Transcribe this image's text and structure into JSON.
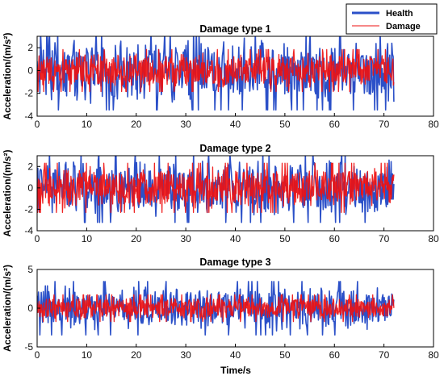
{
  "chart_data": {
    "type": "line",
    "xlabel": "Time/s",
    "xlim": [
      0,
      80
    ],
    "xticks": [
      0,
      10,
      20,
      30,
      40,
      50,
      60,
      70,
      80
    ],
    "signal_duration_s": 72,
    "legend": {
      "position": "top-right",
      "entries": [
        {
          "name": "Health",
          "color": "#2b50c8"
        },
        {
          "name": "Damage",
          "color": "#ee1111"
        }
      ]
    },
    "panels": [
      {
        "title": "Damage type 1",
        "ylabel": "Acceleration/(m/s²)",
        "ylim": [
          -4,
          3
        ],
        "yticks": [
          -4,
          -2,
          0,
          2
        ],
        "series": [
          {
            "name": "Health",
            "color": "#2b50c8",
            "approx_amplitude": 3.0
          },
          {
            "name": "Damage",
            "color": "#ee1111",
            "approx_amplitude": 1.6
          }
        ]
      },
      {
        "title": "Damage type 2",
        "ylabel": "Acceleration/(m/s²)",
        "ylim": [
          -4,
          3
        ],
        "yticks": [
          -4,
          -2,
          0,
          2
        ],
        "series": [
          {
            "name": "Health",
            "color": "#2b50c8",
            "approx_amplitude": 2.8
          },
          {
            "name": "Damage",
            "color": "#ee1111",
            "approx_amplitude": 2.0
          }
        ]
      },
      {
        "title": "Damage type 3",
        "ylabel": "Acceleration/(m/s²)",
        "ylim": [
          -5,
          5
        ],
        "yticks": [
          -5,
          0,
          5
        ],
        "series": [
          {
            "name": "Health",
            "color": "#2b50c8",
            "approx_amplitude": 3.0
          },
          {
            "name": "Damage",
            "color": "#ee1111",
            "approx_amplitude": 1.5
          }
        ]
      }
    ]
  }
}
